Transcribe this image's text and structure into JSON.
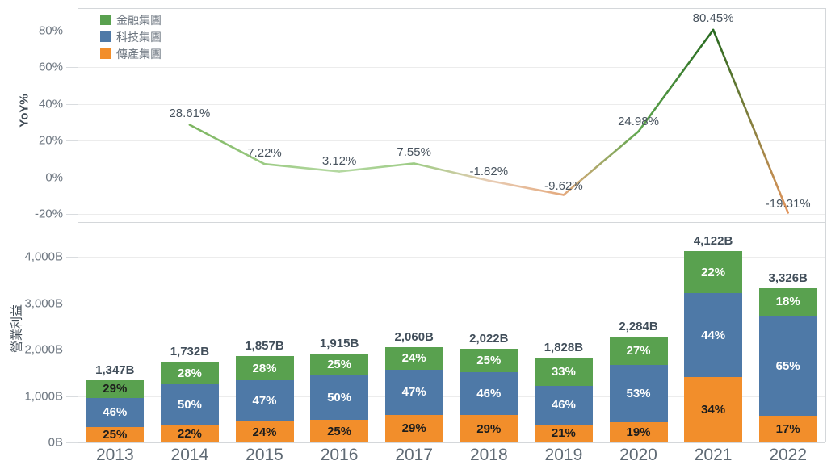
{
  "chart_data": {
    "type": "combo",
    "legend": {
      "position": "top-left-inside",
      "items": [
        {
          "label": "金融集團",
          "color": "#59A14F"
        },
        {
          "label": "科技集團",
          "color": "#4E79A7"
        },
        {
          "label": "傳產集團",
          "color": "#F28E2B"
        }
      ]
    },
    "panels": [
      {
        "name": "yoy-line",
        "type": "line",
        "ylabel": "YoY%",
        "ylim": [
          -29,
          92
        ],
        "grid": true,
        "yticks": [
          {
            "label": "80%",
            "v": 80
          },
          {
            "label": "60%",
            "v": 60
          },
          {
            "label": "40%",
            "v": 40
          },
          {
            "label": "20%",
            "v": 20
          },
          {
            "label": "0%",
            "v": 0,
            "zero": true
          },
          {
            "label": "-20%",
            "v": -20
          }
        ],
        "x": [
          "2014",
          "2015",
          "2016",
          "2017",
          "2018",
          "2019",
          "2020",
          "2021",
          "2022"
        ],
        "values": [
          28.61,
          7.22,
          3.12,
          7.55,
          -1.82,
          -9.62,
          24.98,
          80.45,
          -19.31
        ],
        "labels": [
          "28.61%",
          "7.22%",
          "3.12%",
          "7.55%",
          "-1.82%",
          "-9.62%",
          "24.98%",
          "80.45%",
          "-19.31%"
        ],
        "point_colors": [
          "#7cb560",
          "#9ccb84",
          "#b5d9a2",
          "#9ccb84",
          "#e8cdb5",
          "#e4a97d",
          "#61a851",
          "#27691f",
          "#e2955c"
        ],
        "label_dy": [
          -6,
          -5,
          -5,
          -5,
          -3,
          -2,
          -4,
          -6,
          -2
        ]
      },
      {
        "name": "operating-income-bars",
        "type": "stacked_bar",
        "ylabel": "營業利益",
        "ylim": [
          0,
          4700
        ],
        "grid": true,
        "yticks": [
          {
            "label": "4,000B",
            "v": 4000
          },
          {
            "label": "3,000B",
            "v": 3000
          },
          {
            "label": "2,000B",
            "v": 2000
          },
          {
            "label": "1,000B",
            "v": 1000
          },
          {
            "label": "0B",
            "v": 0
          }
        ],
        "categories": [
          "2013",
          "2014",
          "2015",
          "2016",
          "2017",
          "2018",
          "2019",
          "2020",
          "2021",
          "2022"
        ],
        "totals": [
          1347,
          1732,
          1857,
          1915,
          2060,
          2022,
          1828,
          2284,
          4122,
          3326
        ],
        "total_labels": [
          "1,347B",
          "1,732B",
          "1,857B",
          "1,915B",
          "2,060B",
          "2,022B",
          "1,828B",
          "2,284B",
          "4,122B",
          "3,326B"
        ],
        "series": [
          {
            "name": "傳產集團",
            "color": "#F28E2B",
            "pct": [
              25,
              22,
              24,
              25,
              29,
              29,
              21,
              19,
              34,
              17
            ],
            "pct_labels": [
              "25%",
              "22%",
              "24%",
              "25%",
              "29%",
              "29%",
              "21%",
              "19%",
              "34%",
              "17%"
            ],
            "label_colors": [
              "#1d1d1d",
              "#1d1d1d",
              "#1d1d1d",
              "#1d1d1d",
              "#1d1d1d",
              "#1d1d1d",
              "#1d1d1d",
              "#1d1d1d",
              "#1d1d1d",
              "#1d1d1d"
            ]
          },
          {
            "name": "科技集團",
            "color": "#4E79A7",
            "pct": [
              46,
              50,
              47,
              50,
              47,
              46,
              46,
              53,
              44,
              65
            ],
            "pct_labels": [
              "46%",
              "50%",
              "47%",
              "50%",
              "47%",
              "46%",
              "46%",
              "53%",
              "44%",
              "65%"
            ],
            "label_colors": [
              "#ffffff",
              "#ffffff",
              "#ffffff",
              "#ffffff",
              "#ffffff",
              "#ffffff",
              "#ffffff",
              "#ffffff",
              "#ffffff",
              "#ffffff"
            ]
          },
          {
            "name": "金融集團",
            "color": "#59A14F",
            "pct": [
              29,
              28,
              28,
              25,
              24,
              25,
              33,
              27,
              22,
              18
            ],
            "pct_labels": [
              "29%",
              "28%",
              "28%",
              "25%",
              "24%",
              "25%",
              "33%",
              "27%",
              "22%",
              "18%"
            ],
            "label_colors": [
              "#1d1d1d",
              "#ffffff",
              "#ffffff",
              "#ffffff",
              "#ffffff",
              "#ffffff",
              "#ffffff",
              "#ffffff",
              "#ffffff",
              "#ffffff"
            ]
          }
        ]
      }
    ]
  }
}
